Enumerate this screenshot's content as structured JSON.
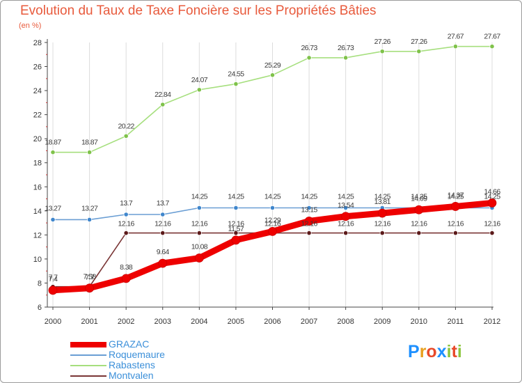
{
  "title": "Evolution du Taux de Taxe Foncière sur les Propriétés Bâties",
  "unit": "(en %)",
  "logo": {
    "text": "Proxiti",
    "letters": [
      "P",
      "r",
      "o",
      "x",
      "i",
      "t",
      "i"
    ],
    "letter_colors": [
      "#1e90ff",
      "#e8a020",
      "#e84a2a",
      "#1e90ff",
      "#8cc63f",
      "#e84a2a",
      "#8cc63f"
    ]
  },
  "chart_data": {
    "type": "line",
    "title": "Evolution du Taux de Taxe Foncière sur les Propriétés Bâties",
    "ylabel": "(en %)",
    "xlabel": "",
    "x": [
      "2000",
      "2001",
      "2002",
      "2003",
      "2004",
      "2005",
      "2006",
      "2007",
      "2008",
      "2009",
      "2010",
      "2011",
      "2012"
    ],
    "ylim": [
      6,
      28
    ],
    "yticks": [
      6,
      8,
      10,
      12,
      14,
      16,
      18,
      20,
      22,
      24,
      26,
      28
    ],
    "grid": "vertical",
    "series": [
      {
        "name": "GRAZAC",
        "color": "#ee0000",
        "values": [
          7.4,
          7.58,
          8.38,
          9.64,
          10.08,
          11.57,
          12.29,
          13.15,
          13.54,
          13.81,
          14.09,
          14.37,
          14.66
        ],
        "labels": [
          "7.4",
          "7.58",
          "8.38",
          "9.64",
          "10.08",
          "11.57",
          "12.29",
          "13.15",
          "13.54",
          "13.81",
          "14.09",
          "14.37",
          "14.66"
        ]
      },
      {
        "name": "Roquemaure",
        "color": "#6a9ed4",
        "values": [
          13.27,
          13.27,
          13.7,
          13.7,
          14.25,
          14.25,
          14.25,
          14.25,
          14.25,
          14.25,
          14.25,
          14.25,
          14.25
        ],
        "labels": [
          "13.27",
          "13.27",
          "13.7",
          "13.7",
          "14.25",
          "14.25",
          "14.25",
          "14.25",
          "14.25",
          "14.25",
          "14.25",
          "14.25",
          "14.25"
        ]
      },
      {
        "name": "Rabastens",
        "color": "#a6df7e",
        "values": [
          18.87,
          18.87,
          20.22,
          22.84,
          24.07,
          24.55,
          25.29,
          26.73,
          26.73,
          27.26,
          27.26,
          27.67,
          27.67
        ],
        "labels": [
          "18.87",
          "18.87",
          "20.22",
          "22.84",
          "24.07",
          "24.55",
          "25.29",
          "26.73",
          "26.73",
          "27.26",
          "27.26",
          "27.67",
          "27.67"
        ]
      },
      {
        "name": "Montvalen",
        "color": "#7a3535",
        "values": [
          7.7,
          7.7,
          12.16,
          12.16,
          12.16,
          12.16,
          12.16,
          12.16,
          12.16,
          12.16,
          12.16,
          12.16,
          12.16
        ],
        "labels": [
          "7.7",
          "7.7",
          "12.16",
          "12.16",
          "12.16",
          "12.16",
          "12.16",
          "12.16",
          "12.16",
          "12.16",
          "12.16",
          "12.16",
          "12.16"
        ]
      }
    ]
  },
  "legend": {
    "position": "bottom-left",
    "items": [
      "GRAZAC",
      "Roquemaure",
      "Rabastens",
      "Montvalen"
    ]
  }
}
